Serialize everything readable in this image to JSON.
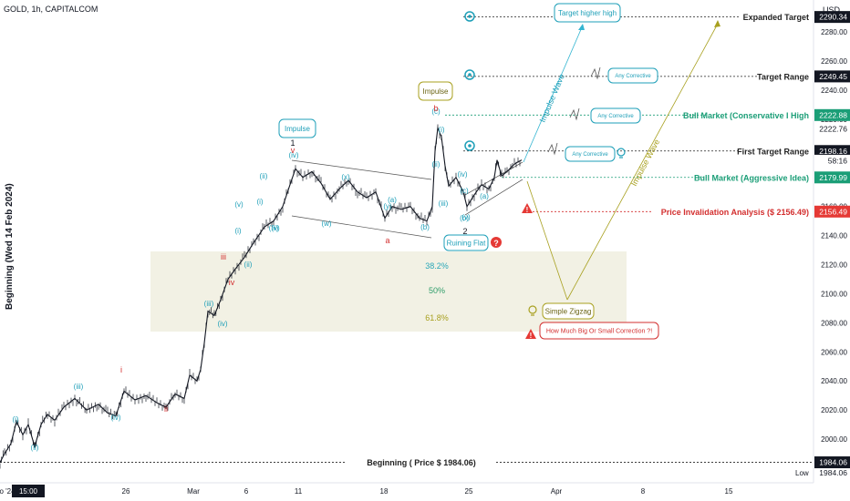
{
  "header": {
    "symbol": "GOLD, 1h, CAPITALCOM"
  },
  "price_axis": {
    "currency": "USD",
    "ticks": [
      "2280.00",
      "2260.00",
      "2240.00",
      "2220.00",
      "2200.00",
      "2180.00",
      "2160.00",
      "2140.00",
      "2120.00",
      "2100.00",
      "2080.00",
      "2060.00",
      "2040.00",
      "2020.00",
      "2000.00"
    ],
    "tags": [
      {
        "label": "2290.34",
        "value": 2290.34,
        "style": "dark"
      },
      {
        "label": "2249.45",
        "value": 2249.45,
        "style": "dark"
      },
      {
        "label": "2222.88",
        "value": 2222.88,
        "style": "green"
      },
      {
        "label": "2222.76",
        "value": 2213.5,
        "style": "plain"
      },
      {
        "label": "2198.16",
        "value": 2198.16,
        "style": "dark"
      },
      {
        "label": "58:16",
        "value": 2191.5,
        "style": "plain"
      },
      {
        "label": "2179.99",
        "value": 2179.99,
        "style": "green"
      },
      {
        "label": "2156.49",
        "value": 2156.49,
        "style": "red"
      },
      {
        "label": "1984.06",
        "value": 1984.06,
        "style": "dark"
      }
    ],
    "low_label": "Low",
    "low_value": "1984.06"
  },
  "time_axis": {
    "labels": [
      "o '24",
      "15:00",
      "26",
      "Mar",
      "6",
      "11",
      "18",
      "25",
      "Apr",
      "8",
      "15"
    ]
  },
  "y_axis_title": "Beginning (Wed 14 Feb 2024)",
  "chart_data": {
    "type": "line",
    "instrument": "GOLD 1h",
    "ylim": [
      1975,
      2297
    ],
    "points": [
      [
        0,
        1984
      ],
      [
        5,
        1990
      ],
      [
        12,
        1997
      ],
      [
        18,
        2012
      ],
      [
        25,
        2003
      ],
      [
        31,
        2010
      ],
      [
        38,
        1995
      ],
      [
        45,
        2010
      ],
      [
        52,
        2017
      ],
      [
        60,
        2013
      ],
      [
        70,
        2022
      ],
      [
        82,
        2028
      ],
      [
        95,
        2020
      ],
      [
        108,
        2024
      ],
      [
        118,
        2018
      ],
      [
        127,
        2016
      ],
      [
        136,
        2033
      ],
      [
        148,
        2027
      ],
      [
        160,
        2030
      ],
      [
        172,
        2025
      ],
      [
        182,
        2022
      ],
      [
        192,
        2031
      ],
      [
        202,
        2028
      ],
      [
        208,
        2044
      ],
      [
        216,
        2040
      ],
      [
        220,
        2048
      ],
      [
        224,
        2066
      ],
      [
        228,
        2088
      ],
      [
        235,
        2085
      ],
      [
        242,
        2096
      ],
      [
        250,
        2110
      ],
      [
        258,
        2117
      ],
      [
        268,
        2125
      ],
      [
        278,
        2135
      ],
      [
        290,
        2146
      ],
      [
        300,
        2150
      ],
      [
        310,
        2160
      ],
      [
        318,
        2175
      ],
      [
        324,
        2186
      ],
      [
        332,
        2180
      ],
      [
        342,
        2184
      ],
      [
        352,
        2176
      ],
      [
        362,
        2165
      ],
      [
        372,
        2172
      ],
      [
        382,
        2178
      ],
      [
        392,
        2170
      ],
      [
        402,
        2166
      ],
      [
        412,
        2170
      ],
      [
        422,
        2152
      ],
      [
        430,
        2160
      ],
      [
        440,
        2158
      ],
      [
        450,
        2160
      ],
      [
        460,
        2152
      ],
      [
        468,
        2150
      ],
      [
        474,
        2160
      ],
      [
        477,
        2198
      ],
      [
        480,
        2214
      ],
      [
        484,
        2208
      ],
      [
        488,
        2188
      ],
      [
        492,
        2174
      ],
      [
        500,
        2180
      ],
      [
        508,
        2170
      ],
      [
        512,
        2160
      ],
      [
        520,
        2168
      ],
      [
        528,
        2175
      ],
      [
        536,
        2172
      ],
      [
        542,
        2180
      ],
      [
        545,
        2192
      ],
      [
        550,
        2181
      ],
      [
        556,
        2184
      ],
      [
        562,
        2188
      ],
      [
        566,
        2190
      ],
      [
        572,
        2192
      ]
    ],
    "levels": [
      {
        "name": "Expanded Target",
        "value": 2290.34,
        "color": "#222222"
      },
      {
        "name": "Target Range",
        "value": 2249.45,
        "color": "#222222"
      },
      {
        "name": "Bull Market (Conservative I High",
        "value": 2222.88,
        "color": "#1b9e77"
      },
      {
        "name": "First Target Range",
        "value": 2198.16,
        "color": "#222222"
      },
      {
        "name": "Bull Market (Aggressive Idea)",
        "value": 2179.99,
        "color": "#1b9e77"
      },
      {
        "name": "Price Invalidation Analysis ($ 2156.49)",
        "value": 2156.49,
        "color": "#d32f2f"
      },
      {
        "name": "Beginning ( Price $ 1984.06)",
        "value": 1984.06,
        "color": "#222222"
      }
    ],
    "fibonacci": [
      "38.2%",
      "50%",
      "61.8%"
    ],
    "wave_labels": {
      "cyan": [
        "(i)",
        "(ii)",
        "(iii)",
        "(iv)",
        "(i)",
        "(ii)",
        "(iii)",
        "(iv)",
        "(v)",
        "(i)",
        "(ii)",
        "(iii)",
        "(iv)",
        "(v)",
        "(w)",
        "(x)",
        "(y)",
        "(a)",
        "(b)",
        "(c)",
        "(i)",
        "(ii)",
        "(iii)",
        "(iv)",
        "(v)",
        "(a)",
        "(b)",
        "(c)"
      ],
      "red": [
        "i",
        "ii",
        "iii",
        "iv",
        "v",
        "b",
        "a"
      ],
      "dark": [
        "1",
        "2"
      ]
    },
    "callouts": {
      "impulse_1": "Impulse",
      "impulse_b": "Impulse",
      "ruining_flat": "Ruining Flat",
      "target_higher_high": "Target higher high",
      "any_corrective": "Any Corrective",
      "simple_zigzag": "Simple Zigzag",
      "how_much": "How Much Big Or Small Correction ?!",
      "impulse_wave": "Impulse Wave"
    }
  }
}
